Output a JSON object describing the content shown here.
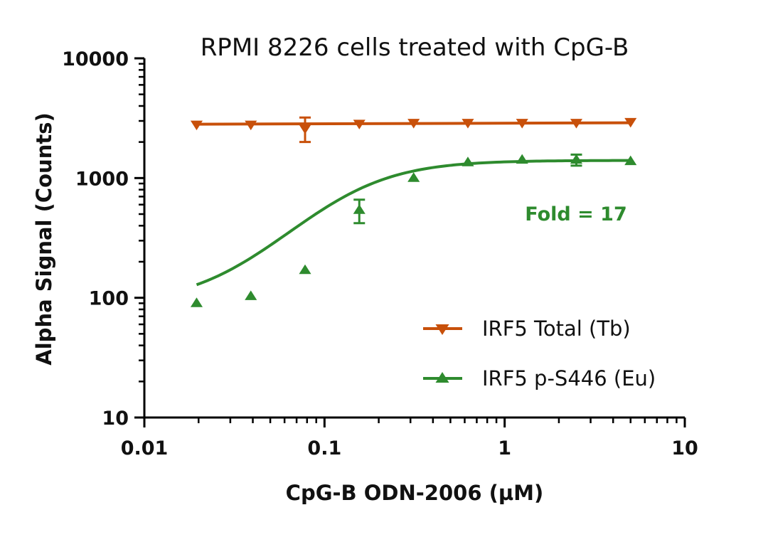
{
  "chart_data": {
    "type": "scatter",
    "title": "RPMI 8226 cells treated with CpG-B",
    "xlabel": "CpG-B ODN-2006 (µM)",
    "ylabel": "Alpha Signal (Counts)",
    "xscale": "log",
    "yscale": "log",
    "xlim": [
      0.01,
      10
    ],
    "ylim": [
      10,
      10000
    ],
    "x_ticks": [
      "0.01",
      "0.1",
      "1",
      "10"
    ],
    "y_ticks": [
      "10",
      "100",
      "1000",
      "10000"
    ],
    "grid": false,
    "legend_position": "bottom-right",
    "annotation": {
      "text": "Fold = 17",
      "color": "#2e8b2e"
    },
    "series": [
      {
        "name": "IRF5 Total (Tb)",
        "marker": "triangle-down",
        "color": "#c8500a",
        "fit": "flat line",
        "x": [
          0.0195,
          0.039,
          0.078,
          0.156,
          0.3125,
          0.625,
          1.25,
          2.5,
          5
        ],
        "y": [
          2800,
          2800,
          2600,
          2850,
          2900,
          2900,
          2900,
          2900,
          2950
        ],
        "error": [
          0,
          0,
          600,
          0,
          0,
          0,
          0,
          0,
          0
        ]
      },
      {
        "name": "IRF5 p-S446 (Eu)",
        "marker": "triangle-up",
        "color": "#2e8b2e",
        "fit": "sigmoidal",
        "x": [
          0.0195,
          0.039,
          0.078,
          0.156,
          0.3125,
          0.625,
          1.25,
          2.5,
          5
        ],
        "y": [
          90,
          103,
          170,
          540,
          1000,
          1350,
          1420,
          1420,
          1380
        ],
        "error": [
          0,
          0,
          0,
          120,
          0,
          0,
          0,
          150,
          0
        ]
      }
    ]
  }
}
